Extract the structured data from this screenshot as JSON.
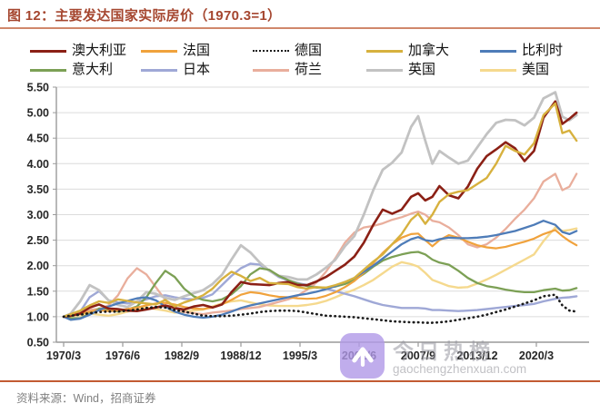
{
  "figure": {
    "title": "图 12：主要发达国家实际房价（1970.3=1）",
    "title_color": "#A5462F",
    "underline_color": "#D0876B",
    "footer_rule_color": "#C25B33",
    "source": "资料来源：Wind，招商证券"
  },
  "watermark": {
    "brand": "今日热榜",
    "domain": "gaochengzhenxuan.com",
    "icon": "chevron-up-icon",
    "icon_bg": "rgba(176,152,231,0.8)"
  },
  "chart_data": {
    "type": "line",
    "title": "主要发达国家实际房价（1970.3=1）",
    "xlabel": "",
    "ylabel": "",
    "ylim": [
      0.5,
      5.5
    ],
    "y_tick_step": 0.5,
    "grid": true,
    "grid_color": "#DCDCDC",
    "axis_color": "#9A9A9A",
    "tick_label_color": "#262626",
    "legend_position": "top",
    "x_tick_labels": [
      "1970/3",
      "1976/6",
      "1982/9",
      "1988/12",
      "1995/3",
      "2001/6",
      "2007/9",
      "2013/12",
      "2020/3"
    ],
    "x_tick_years": [
      1970.25,
      1976.5,
      1982.75,
      1989.0,
      1995.25,
      2001.5,
      2007.75,
      2014.0,
      2020.25
    ],
    "x": [
      1970.25,
      1971,
      1972,
      1973,
      1974,
      1975,
      1976,
      1977,
      1978,
      1979,
      1980,
      1981,
      1982,
      1983,
      1984,
      1985,
      1986,
      1987,
      1988,
      1989,
      1990,
      1991,
      1992,
      1993,
      1994,
      1995,
      1996,
      1997,
      1998,
      1999,
      2000,
      2001,
      2002,
      2003,
      2004,
      2005,
      2006,
      2007,
      2007.75,
      2008.5,
      2009.25,
      2010,
      2011,
      2012,
      2013,
      2014,
      2015,
      2016,
      2017,
      2018,
      2019,
      2020,
      2021,
      2022.25,
      2023,
      2023.75,
      2024.5
    ],
    "series": [
      {
        "name": "澳大利亚",
        "name_en": "australia",
        "color": "#8B2015",
        "width": 2.6,
        "dotted": false,
        "values": [
          1.0,
          1.02,
          1.06,
          1.18,
          1.24,
          1.16,
          1.15,
          1.12,
          1.11,
          1.14,
          1.18,
          1.22,
          1.17,
          1.14,
          1.2,
          1.23,
          1.18,
          1.24,
          1.48,
          1.68,
          1.64,
          1.63,
          1.62,
          1.66,
          1.68,
          1.62,
          1.62,
          1.69,
          1.78,
          1.9,
          2.02,
          2.18,
          2.45,
          2.8,
          3.1,
          3.02,
          3.1,
          3.35,
          3.42,
          3.28,
          3.35,
          3.56,
          3.38,
          3.32,
          3.55,
          3.9,
          4.15,
          4.28,
          4.42,
          4.3,
          4.05,
          4.25,
          4.9,
          5.22,
          4.78,
          4.88,
          5.0
        ]
      },
      {
        "name": "法国",
        "name_en": "france",
        "color": "#F0A23C",
        "width": 2.2,
        "dotted": false,
        "values": [
          1.0,
          1.02,
          1.05,
          1.1,
          1.13,
          1.11,
          1.12,
          1.15,
          1.18,
          1.22,
          1.26,
          1.27,
          1.24,
          1.19,
          1.16,
          1.15,
          1.18,
          1.24,
          1.33,
          1.43,
          1.48,
          1.46,
          1.42,
          1.39,
          1.38,
          1.36,
          1.35,
          1.36,
          1.41,
          1.48,
          1.58,
          1.7,
          1.86,
          2.05,
          2.25,
          2.42,
          2.55,
          2.62,
          2.63,
          2.5,
          2.38,
          2.5,
          2.6,
          2.55,
          2.47,
          2.4,
          2.36,
          2.34,
          2.37,
          2.42,
          2.47,
          2.53,
          2.62,
          2.7,
          2.58,
          2.48,
          2.4
        ]
      },
      {
        "name": "德国",
        "name_en": "germany",
        "color": "#1A1A1A",
        "width": 2.6,
        "dotted": true,
        "values": [
          1.0,
          1.02,
          1.04,
          1.07,
          1.09,
          1.1,
          1.1,
          1.12,
          1.14,
          1.17,
          1.19,
          1.18,
          1.13,
          1.1,
          1.06,
          1.02,
          1.01,
          1.01,
          1.02,
          1.04,
          1.06,
          1.09,
          1.11,
          1.12,
          1.12,
          1.11,
          1.08,
          1.05,
          1.02,
          1.01,
          1.0,
          0.99,
          0.97,
          0.95,
          0.93,
          0.91,
          0.9,
          0.89,
          0.89,
          0.88,
          0.88,
          0.89,
          0.91,
          0.94,
          0.97,
          1.0,
          1.04,
          1.09,
          1.14,
          1.2,
          1.26,
          1.32,
          1.4,
          1.43,
          1.22,
          1.12,
          1.1
        ]
      },
      {
        "name": "加拿大",
        "name_en": "canada",
        "color": "#D7B13E",
        "width": 2.4,
        "dotted": false,
        "values": [
          1.0,
          1.05,
          1.12,
          1.22,
          1.3,
          1.27,
          1.34,
          1.31,
          1.28,
          1.26,
          1.24,
          1.33,
          1.2,
          1.28,
          1.34,
          1.42,
          1.55,
          1.74,
          1.88,
          1.8,
          1.7,
          1.76,
          1.66,
          1.65,
          1.64,
          1.58,
          1.55,
          1.58,
          1.57,
          1.62,
          1.68,
          1.76,
          1.92,
          2.08,
          2.22,
          2.42,
          2.62,
          2.9,
          3.02,
          2.82,
          3.0,
          3.25,
          3.4,
          3.45,
          3.48,
          3.6,
          3.72,
          4.0,
          4.35,
          4.25,
          4.18,
          4.4,
          4.95,
          5.18,
          4.6,
          4.65,
          4.45
        ]
      },
      {
        "name": "比利时",
        "name_en": "belgium",
        "color": "#4E7CB8",
        "width": 2.3,
        "dotted": false,
        "values": [
          1.0,
          0.94,
          0.96,
          1.04,
          1.13,
          1.2,
          1.26,
          1.31,
          1.36,
          1.38,
          1.32,
          1.2,
          1.1,
          1.04,
          1.0,
          0.98,
          1.0,
          1.04,
          1.1,
          1.17,
          1.22,
          1.26,
          1.3,
          1.34,
          1.38,
          1.42,
          1.45,
          1.49,
          1.54,
          1.6,
          1.68,
          1.76,
          1.88,
          2.0,
          2.14,
          2.28,
          2.42,
          2.52,
          2.56,
          2.5,
          2.48,
          2.52,
          2.55,
          2.54,
          2.54,
          2.55,
          2.57,
          2.6,
          2.64,
          2.68,
          2.74,
          2.8,
          2.88,
          2.8,
          2.66,
          2.62,
          2.68
        ]
      },
      {
        "name": "意大利",
        "name_en": "italy",
        "color": "#7CA055",
        "width": 2.3,
        "dotted": false,
        "values": [
          1.0,
          0.97,
          0.97,
          1.06,
          1.16,
          1.14,
          1.1,
          1.14,
          1.2,
          1.38,
          1.66,
          1.9,
          1.78,
          1.55,
          1.4,
          1.33,
          1.3,
          1.34,
          1.44,
          1.6,
          1.83,
          1.95,
          1.92,
          1.8,
          1.72,
          1.65,
          1.6,
          1.57,
          1.57,
          1.59,
          1.64,
          1.72,
          1.84,
          1.98,
          2.1,
          2.17,
          2.22,
          2.26,
          2.27,
          2.22,
          2.12,
          2.06,
          2.02,
          1.9,
          1.76,
          1.66,
          1.6,
          1.57,
          1.53,
          1.5,
          1.48,
          1.48,
          1.52,
          1.55,
          1.51,
          1.52,
          1.56
        ]
      },
      {
        "name": "日本",
        "name_en": "japan",
        "color": "#9FA8D6",
        "width": 2.4,
        "dotted": false,
        "values": [
          1.0,
          1.02,
          1.1,
          1.38,
          1.5,
          1.32,
          1.28,
          1.26,
          1.29,
          1.34,
          1.4,
          1.42,
          1.38,
          1.35,
          1.34,
          1.37,
          1.44,
          1.62,
          1.8,
          1.95,
          2.04,
          2.02,
          1.9,
          1.78,
          1.71,
          1.66,
          1.62,
          1.58,
          1.55,
          1.5,
          1.45,
          1.4,
          1.34,
          1.28,
          1.23,
          1.2,
          1.17,
          1.17,
          1.17,
          1.16,
          1.13,
          1.13,
          1.12,
          1.11,
          1.12,
          1.13,
          1.15,
          1.17,
          1.19,
          1.21,
          1.23,
          1.25,
          1.3,
          1.35,
          1.37,
          1.38,
          1.4
        ]
      },
      {
        "name": "荷兰",
        "name_en": "netherlands",
        "color": "#E9AE9C",
        "width": 2.3,
        "dotted": false,
        "values": [
          1.0,
          1.02,
          1.08,
          1.14,
          1.15,
          1.22,
          1.42,
          1.75,
          1.95,
          1.83,
          1.58,
          1.33,
          1.16,
          1.09,
          1.07,
          1.05,
          1.08,
          1.1,
          1.12,
          1.15,
          1.17,
          1.19,
          1.24,
          1.29,
          1.34,
          1.41,
          1.53,
          1.67,
          1.88,
          2.15,
          2.45,
          2.65,
          2.75,
          2.78,
          2.83,
          2.9,
          2.95,
          3.02,
          3.06,
          3.0,
          2.88,
          2.85,
          2.75,
          2.6,
          2.42,
          2.36,
          2.42,
          2.55,
          2.72,
          2.92,
          3.1,
          3.32,
          3.65,
          3.8,
          3.48,
          3.55,
          3.8
        ]
      },
      {
        "name": "英国",
        "name_en": "uk",
        "color": "#C2C2C2",
        "width": 2.8,
        "dotted": false,
        "values": [
          1.0,
          1.06,
          1.3,
          1.62,
          1.52,
          1.32,
          1.23,
          1.19,
          1.3,
          1.48,
          1.45,
          1.37,
          1.33,
          1.4,
          1.46,
          1.52,
          1.64,
          1.82,
          2.12,
          2.4,
          2.26,
          2.06,
          1.9,
          1.8,
          1.78,
          1.73,
          1.73,
          1.83,
          1.96,
          2.12,
          2.38,
          2.58,
          3.0,
          3.48,
          3.88,
          4.02,
          4.22,
          4.72,
          4.93,
          4.45,
          4.0,
          4.25,
          4.12,
          4.0,
          4.06,
          4.32,
          4.58,
          4.8,
          4.86,
          4.85,
          4.75,
          4.9,
          5.28,
          5.4,
          4.92,
          4.85,
          4.95
        ]
      },
      {
        "name": "美国",
        "name_en": "usa",
        "color": "#F5D98E",
        "width": 2.4,
        "dotted": false,
        "values": [
          1.0,
          1.01,
          1.03,
          1.06,
          1.04,
          1.02,
          1.05,
          1.1,
          1.15,
          1.18,
          1.15,
          1.12,
          1.08,
          1.1,
          1.12,
          1.14,
          1.2,
          1.26,
          1.3,
          1.32,
          1.28,
          1.24,
          1.22,
          1.21,
          1.21,
          1.21,
          1.23,
          1.26,
          1.31,
          1.38,
          1.46,
          1.53,
          1.62,
          1.72,
          1.85,
          1.98,
          2.07,
          2.03,
          1.98,
          1.86,
          1.72,
          1.67,
          1.6,
          1.57,
          1.58,
          1.65,
          1.73,
          1.82,
          1.92,
          2.02,
          2.12,
          2.22,
          2.48,
          2.75,
          2.68,
          2.7,
          2.73
        ]
      }
    ],
    "legend_order": [
      0,
      1,
      2,
      3,
      4,
      5,
      6,
      7,
      8,
      9
    ],
    "draw_order": [
      9,
      6,
      7,
      8,
      5,
      1,
      4,
      0,
      3,
      2
    ]
  }
}
